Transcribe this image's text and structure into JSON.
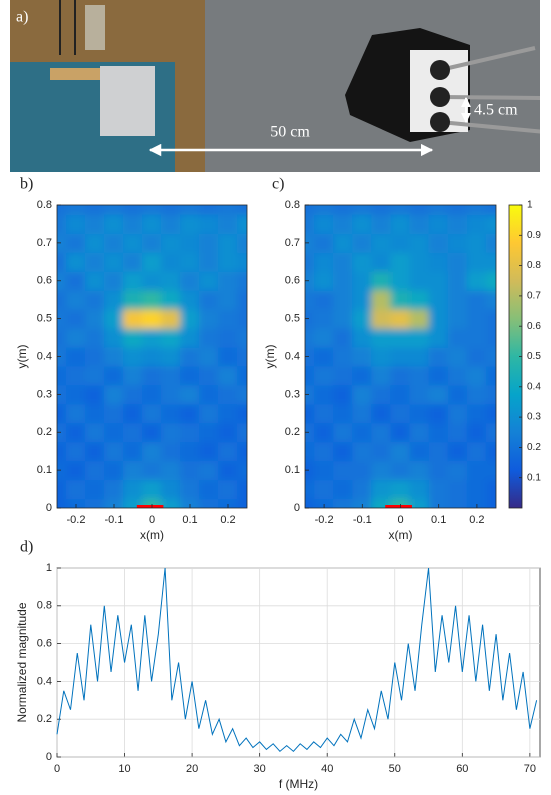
{
  "photo": {
    "label": "a)",
    "annotations": [
      "50 cm",
      "4.5 cm"
    ]
  },
  "chart_data": [
    {
      "type": "heatmap",
      "panel_label": "b)",
      "xlabel": "x(m)",
      "ylabel": "y(m)",
      "xlim": [
        -0.25,
        0.25
      ],
      "ylim": [
        0,
        0.8
      ],
      "xticks": [
        -0.2,
        -0.1,
        0,
        0.1,
        0.2
      ],
      "yticks": [
        0,
        0.1,
        0.2,
        0.3,
        0.4,
        0.5,
        0.6,
        0.7,
        0.8
      ],
      "clim": [
        0,
        1
      ],
      "colormap": [
        "#352a87",
        "#0f5cdd",
        "#1481d6",
        "#06a4ca",
        "#2eb7a4",
        "#87bf77",
        "#d1bb59",
        "#fec832",
        "#f9fb0e"
      ],
      "marker": {
        "x": [
          -0.04,
          0.03
        ],
        "color": "#ff0000"
      },
      "x": [
        -0.25,
        -0.2,
        -0.15,
        -0.1,
        -0.05,
        0,
        0.05,
        0.1,
        0.15,
        0.2,
        0.25
      ],
      "y": [
        0,
        0.05,
        0.1,
        0.15,
        0.2,
        0.25,
        0.3,
        0.35,
        0.4,
        0.45,
        0.5,
        0.55,
        0.6,
        0.65,
        0.7,
        0.75,
        0.8
      ],
      "z": [
        [
          0.15,
          0.18,
          0.2,
          0.25,
          0.35,
          0.5,
          0.35,
          0.25,
          0.2,
          0.18,
          0.15
        ],
        [
          0.15,
          0.2,
          0.18,
          0.22,
          0.3,
          0.35,
          0.28,
          0.22,
          0.18,
          0.2,
          0.15
        ],
        [
          0.18,
          0.15,
          0.2,
          0.18,
          0.25,
          0.22,
          0.25,
          0.2,
          0.22,
          0.15,
          0.18
        ],
        [
          0.15,
          0.2,
          0.15,
          0.22,
          0.18,
          0.25,
          0.2,
          0.18,
          0.15,
          0.2,
          0.15
        ],
        [
          0.2,
          0.15,
          0.22,
          0.18,
          0.2,
          0.15,
          0.22,
          0.2,
          0.18,
          0.15,
          0.2
        ],
        [
          0.15,
          0.22,
          0.18,
          0.2,
          0.15,
          0.22,
          0.18,
          0.15,
          0.22,
          0.18,
          0.15
        ],
        [
          0.2,
          0.18,
          0.15,
          0.25,
          0.2,
          0.18,
          0.22,
          0.25,
          0.18,
          0.2,
          0.22
        ],
        [
          0.18,
          0.2,
          0.22,
          0.18,
          0.25,
          0.2,
          0.22,
          0.18,
          0.2,
          0.25,
          0.18
        ],
        [
          0.22,
          0.18,
          0.2,
          0.25,
          0.3,
          0.28,
          0.3,
          0.22,
          0.25,
          0.18,
          0.2
        ],
        [
          0.2,
          0.25,
          0.22,
          0.3,
          0.4,
          0.35,
          0.38,
          0.3,
          0.22,
          0.2,
          0.22
        ],
        [
          0.22,
          0.2,
          0.25,
          0.35,
          0.85,
          0.9,
          0.8,
          0.35,
          0.25,
          0.22,
          0.2
        ],
        [
          0.2,
          0.25,
          0.22,
          0.3,
          0.45,
          0.5,
          0.4,
          0.3,
          0.22,
          0.25,
          0.2
        ],
        [
          0.25,
          0.2,
          0.3,
          0.25,
          0.35,
          0.3,
          0.32,
          0.25,
          0.3,
          0.25,
          0.22
        ],
        [
          0.2,
          0.3,
          0.25,
          0.3,
          0.25,
          0.35,
          0.28,
          0.3,
          0.25,
          0.3,
          0.28
        ],
        [
          0.25,
          0.22,
          0.3,
          0.25,
          0.3,
          0.25,
          0.3,
          0.28,
          0.25,
          0.3,
          0.25
        ],
        [
          0.22,
          0.28,
          0.25,
          0.3,
          0.25,
          0.3,
          0.25,
          0.3,
          0.28,
          0.25,
          0.3
        ],
        [
          0.2,
          0.22,
          0.2,
          0.22,
          0.2,
          0.22,
          0.2,
          0.22,
          0.2,
          0.22,
          0.2
        ]
      ]
    },
    {
      "type": "heatmap",
      "panel_label": "c)",
      "xlabel": "x(m)",
      "ylabel": "y(m)",
      "xlim": [
        -0.25,
        0.25
      ],
      "ylim": [
        0,
        0.8
      ],
      "xticks": [
        -0.2,
        -0.1,
        0,
        0.1,
        0.2
      ],
      "yticks": [
        0,
        0.1,
        0.2,
        0.3,
        0.4,
        0.5,
        0.6,
        0.7,
        0.8
      ],
      "clim": [
        0,
        1
      ],
      "colormap": [
        "#352a87",
        "#0f5cdd",
        "#1481d6",
        "#06a4ca",
        "#2eb7a4",
        "#87bf77",
        "#d1bb59",
        "#fec832",
        "#f9fb0e"
      ],
      "colorbar": true,
      "cticks": [
        0.1,
        0.2,
        0.3,
        0.4,
        0.5,
        0.6,
        0.7,
        0.8,
        0.9,
        1
      ],
      "marker": {
        "x": [
          -0.04,
          0.03
        ],
        "color": "#ff0000"
      },
      "x": [
        -0.25,
        -0.2,
        -0.15,
        -0.1,
        -0.05,
        0,
        0.05,
        0.1,
        0.15,
        0.2,
        0.25
      ],
      "y": [
        0,
        0.05,
        0.1,
        0.15,
        0.2,
        0.25,
        0.3,
        0.35,
        0.4,
        0.45,
        0.5,
        0.55,
        0.6,
        0.65,
        0.7,
        0.75,
        0.8
      ],
      "z": [
        [
          0.15,
          0.18,
          0.22,
          0.25,
          0.4,
          0.5,
          0.35,
          0.22,
          0.2,
          0.18,
          0.15
        ],
        [
          0.18,
          0.2,
          0.18,
          0.22,
          0.32,
          0.35,
          0.3,
          0.22,
          0.2,
          0.18,
          0.15
        ],
        [
          0.15,
          0.18,
          0.2,
          0.2,
          0.25,
          0.22,
          0.25,
          0.2,
          0.22,
          0.18,
          0.18
        ],
        [
          0.18,
          0.2,
          0.15,
          0.22,
          0.2,
          0.25,
          0.18,
          0.2,
          0.15,
          0.2,
          0.15
        ],
        [
          0.2,
          0.15,
          0.22,
          0.18,
          0.22,
          0.15,
          0.22,
          0.18,
          0.2,
          0.15,
          0.2
        ],
        [
          0.15,
          0.2,
          0.18,
          0.22,
          0.15,
          0.2,
          0.18,
          0.15,
          0.22,
          0.18,
          0.15
        ],
        [
          0.22,
          0.18,
          0.15,
          0.25,
          0.2,
          0.18,
          0.22,
          0.25,
          0.18,
          0.22,
          0.2
        ],
        [
          0.18,
          0.22,
          0.2,
          0.18,
          0.25,
          0.2,
          0.22,
          0.18,
          0.22,
          0.25,
          0.18
        ],
        [
          0.2,
          0.18,
          0.22,
          0.25,
          0.3,
          0.28,
          0.28,
          0.22,
          0.25,
          0.2,
          0.22
        ],
        [
          0.22,
          0.25,
          0.2,
          0.3,
          0.35,
          0.35,
          0.35,
          0.3,
          0.22,
          0.22,
          0.2
        ],
        [
          0.2,
          0.22,
          0.25,
          0.35,
          0.75,
          0.8,
          0.7,
          0.3,
          0.25,
          0.22,
          0.2
        ],
        [
          0.22,
          0.2,
          0.25,
          0.3,
          0.7,
          0.45,
          0.4,
          0.3,
          0.25,
          0.22,
          0.25
        ],
        [
          0.25,
          0.3,
          0.25,
          0.3,
          0.45,
          0.35,
          0.3,
          0.3,
          0.25,
          0.35,
          0.4
        ],
        [
          0.22,
          0.28,
          0.25,
          0.32,
          0.28,
          0.35,
          0.3,
          0.28,
          0.25,
          0.3,
          0.3
        ],
        [
          0.25,
          0.22,
          0.3,
          0.25,
          0.3,
          0.28,
          0.3,
          0.25,
          0.28,
          0.3,
          0.25
        ],
        [
          0.22,
          0.28,
          0.25,
          0.3,
          0.25,
          0.3,
          0.25,
          0.28,
          0.25,
          0.28,
          0.3
        ],
        [
          0.2,
          0.22,
          0.2,
          0.22,
          0.2,
          0.22,
          0.2,
          0.22,
          0.2,
          0.22,
          0.2
        ]
      ]
    },
    {
      "type": "line",
      "panel_label": "d)",
      "xlabel": "f (MHz)",
      "ylabel": "Normalized magnitude",
      "xlim": [
        0,
        71.5
      ],
      "ylim": [
        0,
        1
      ],
      "xticks": [
        0,
        10,
        20,
        30,
        40,
        50,
        60,
        70
      ],
      "yticks": [
        0,
        0.2,
        0.4,
        0.6,
        0.8,
        1
      ],
      "grid": true,
      "series": [
        {
          "color": "#0072bd",
          "x": [
            0,
            1,
            2,
            3,
            4,
            5,
            6,
            7,
            8,
            9,
            10,
            11,
            12,
            13,
            14,
            15,
            16,
            17,
            18,
            19,
            20,
            21,
            22,
            23,
            24,
            25,
            26,
            27,
            28,
            29,
            30,
            31,
            32,
            33,
            34,
            35,
            36,
            37,
            38,
            39,
            40,
            41,
            42,
            43,
            44,
            45,
            46,
            47,
            48,
            49,
            50,
            51,
            52,
            53,
            54,
            55,
            56,
            57,
            58,
            59,
            60,
            61,
            62,
            63,
            64,
            65,
            66,
            67,
            68,
            69,
            70,
            71
          ],
          "values": [
            0.12,
            0.35,
            0.25,
            0.55,
            0.3,
            0.7,
            0.4,
            0.8,
            0.45,
            0.75,
            0.5,
            0.7,
            0.35,
            0.75,
            0.4,
            0.65,
            1,
            0.3,
            0.5,
            0.2,
            0.4,
            0.15,
            0.3,
            0.12,
            0.2,
            0.08,
            0.15,
            0.06,
            0.1,
            0.05,
            0.08,
            0.04,
            0.07,
            0.03,
            0.06,
            0.03,
            0.07,
            0.04,
            0.08,
            0.05,
            0.1,
            0.06,
            0.12,
            0.08,
            0.2,
            0.1,
            0.25,
            0.15,
            0.35,
            0.2,
            0.5,
            0.3,
            0.6,
            0.35,
            0.7,
            1,
            0.45,
            0.75,
            0.5,
            0.8,
            0.45,
            0.75,
            0.4,
            0.7,
            0.35,
            0.65,
            0.3,
            0.55,
            0.25,
            0.45,
            0.15,
            0.3
          ]
        }
      ]
    }
  ]
}
